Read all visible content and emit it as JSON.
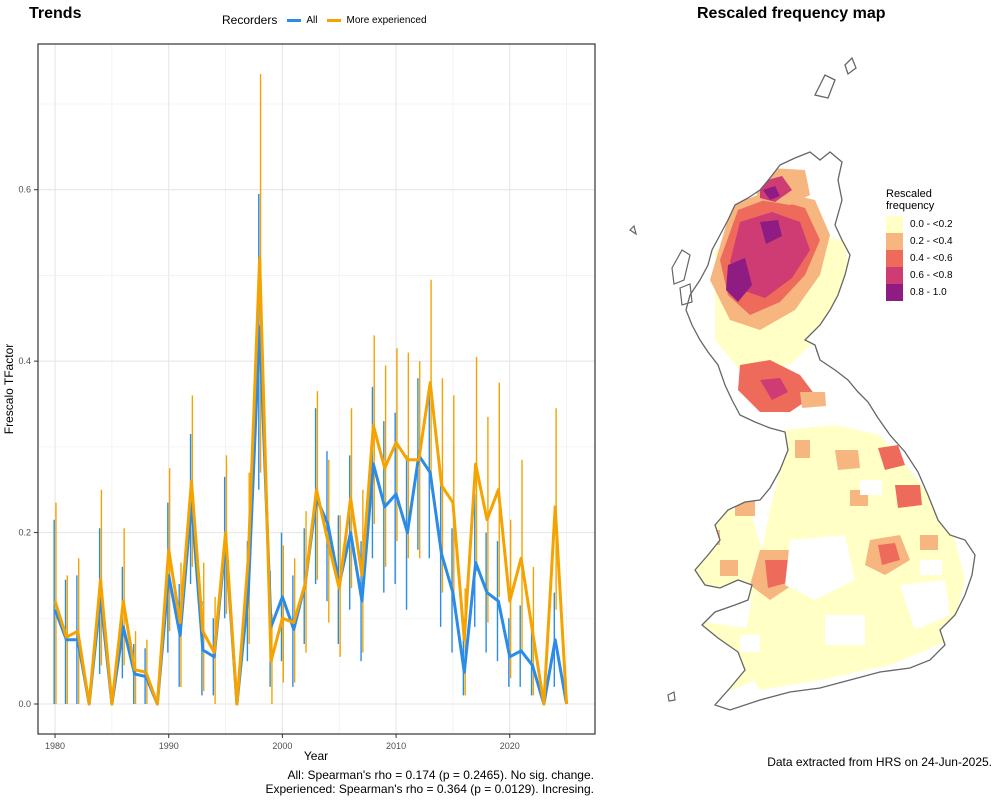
{
  "trends": {
    "title": "Trends",
    "legend_title": "Recorders",
    "stats_all": "All: Spearman's rho = 0.174 (p = 0.2465). No sig. change.",
    "stats_experienced": "Experienced: Spearman's rho = 0.364 (p = 0.0129). Incresing."
  },
  "chart_data": [
    {
      "type": "line",
      "xlabel": "Year",
      "ylabel": "Frescalo TFactor",
      "xlim": [
        1978.5,
        2027.5
      ],
      "ylim": [
        -0.035,
        0.77
      ],
      "xticks": [
        1980,
        1990,
        2000,
        2010,
        2020
      ],
      "yticks": [
        0.0,
        0.2,
        0.4,
        0.6
      ],
      "ytick_labels": [
        "0.0",
        "0.2",
        "0.4",
        "0.6"
      ],
      "grid": true,
      "legend_position": "top",
      "x": [
        1980,
        1981,
        1982,
        1983,
        1984,
        1985,
        1986,
        1987,
        1988,
        1989,
        1990,
        1991,
        1992,
        1993,
        1994,
        1995,
        1996,
        1997,
        1998,
        1999,
        2000,
        2001,
        2002,
        2003,
        2004,
        2005,
        2006,
        2007,
        2008,
        2009,
        2010,
        2011,
        2012,
        2013,
        2014,
        2015,
        2016,
        2017,
        2018,
        2019,
        2020,
        2021,
        2022,
        2023,
        2024,
        2025
      ],
      "series": [
        {
          "name": "All",
          "color": "#2b8ce8",
          "values": [
            0.11,
            0.075,
            0.075,
            0.0,
            0.125,
            0.0,
            0.09,
            0.035,
            0.032,
            0.0,
            0.15,
            0.08,
            0.235,
            0.063,
            0.055,
            0.19,
            0.0,
            0.13,
            0.44,
            0.09,
            0.125,
            0.087,
            0.14,
            0.24,
            0.21,
            0.14,
            0.2,
            0.12,
            0.28,
            0.23,
            0.245,
            0.2,
            0.29,
            0.27,
            0.175,
            0.13,
            0.037,
            0.165,
            0.13,
            0.12,
            0.055,
            0.062,
            0.045,
            0.0,
            0.075,
            0.0
          ],
          "lower": [
            0.0,
            0.0,
            0.0,
            0.0,
            0.035,
            0.0,
            0.03,
            0.0,
            0.0,
            0.0,
            0.06,
            0.02,
            0.14,
            0.01,
            0.01,
            0.1,
            0.0,
            0.05,
            0.25,
            0.02,
            0.05,
            0.02,
            0.07,
            0.14,
            0.12,
            0.07,
            0.11,
            0.05,
            0.17,
            0.13,
            0.14,
            0.11,
            0.18,
            0.17,
            0.09,
            0.06,
            0.01,
            0.09,
            0.06,
            0.05,
            0.02,
            0.02,
            0.01,
            0.0,
            0.02,
            0.0
          ],
          "upper": [
            0.215,
            0.145,
            0.15,
            0.0,
            0.205,
            0.0,
            0.16,
            0.07,
            0.065,
            0.0,
            0.235,
            0.14,
            0.315,
            0.12,
            0.1,
            0.265,
            0.0,
            0.19,
            0.595,
            0.155,
            0.2,
            0.15,
            0.205,
            0.345,
            0.295,
            0.22,
            0.29,
            0.19,
            0.37,
            0.33,
            0.34,
            0.29,
            0.38,
            0.36,
            0.255,
            0.205,
            0.08,
            0.245,
            0.2,
            0.19,
            0.1,
            0.115,
            0.09,
            0.0,
            0.13,
            0.0
          ]
        },
        {
          "name": "More experienced",
          "color": "#f5a300",
          "values": [
            0.12,
            0.078,
            0.085,
            0.0,
            0.145,
            0.0,
            0.12,
            0.04,
            0.037,
            0.0,
            0.18,
            0.095,
            0.26,
            0.085,
            0.06,
            0.2,
            0.0,
            0.17,
            0.52,
            0.05,
            0.1,
            0.095,
            0.14,
            0.25,
            0.19,
            0.135,
            0.24,
            0.15,
            0.325,
            0.275,
            0.305,
            0.285,
            0.285,
            0.375,
            0.255,
            0.235,
            0.075,
            0.28,
            0.215,
            0.25,
            0.12,
            0.17,
            0.085,
            0.0,
            0.23,
            0.0
          ],
          "lower": [
            0.0,
            0.0,
            0.0,
            0.0,
            0.045,
            0.0,
            0.045,
            0.0,
            0.0,
            0.0,
            0.085,
            0.02,
            0.16,
            0.015,
            0.0,
            0.105,
            0.0,
            0.07,
            0.27,
            0.0,
            0.025,
            0.025,
            0.06,
            0.145,
            0.095,
            0.055,
            0.135,
            0.06,
            0.21,
            0.16,
            0.19,
            0.17,
            0.17,
            0.25,
            0.13,
            0.115,
            0.01,
            0.155,
            0.095,
            0.125,
            0.03,
            0.06,
            0.01,
            0.0,
            0.11,
            0.0
          ],
          "upper": [
            0.235,
            0.15,
            0.17,
            0.0,
            0.25,
            0.0,
            0.205,
            0.085,
            0.075,
            0.0,
            0.275,
            0.165,
            0.36,
            0.165,
            0.125,
            0.29,
            0.0,
            0.27,
            0.735,
            0.105,
            0.185,
            0.17,
            0.225,
            0.365,
            0.285,
            0.22,
            0.345,
            0.25,
            0.43,
            0.395,
            0.415,
            0.41,
            0.4,
            0.495,
            0.38,
            0.36,
            0.135,
            0.405,
            0.335,
            0.375,
            0.215,
            0.285,
            0.16,
            0.0,
            0.345,
            0.0
          ]
        }
      ]
    }
  ],
  "map": {
    "title": "Rescaled frequency map",
    "legend_title": "Rescaled frequency",
    "legend": [
      {
        "label": "0.0 - <0.2",
        "color": "#ffffc6"
      },
      {
        "label": "0.2 - <0.4",
        "color": "#f7b580"
      },
      {
        "label": "0.4 - <0.6",
        "color": "#ee6a5a"
      },
      {
        "label": "0.6 - <0.8",
        "color": "#cf3b73"
      },
      {
        "label": "0.8 - 1.0",
        "color": "#8e1c83"
      }
    ],
    "footnote": "Data extracted from HRS on 24-Jun-2025."
  }
}
